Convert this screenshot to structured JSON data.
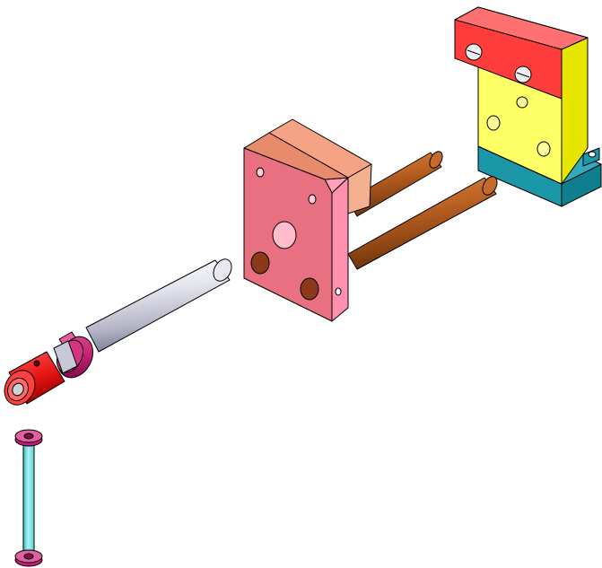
{
  "view": {
    "type": "exploded-isometric-cad-assembly",
    "background_color": "#ffffff",
    "outline_color": "#000000"
  },
  "parts": [
    {
      "id": "yellow-bracket",
      "colors": {
        "light": "#ffff66",
        "mid": "#f0f000",
        "dark": "#d8d800"
      }
    },
    {
      "id": "red-clamp-bar",
      "colors": {
        "light": "#ff5050",
        "mid": "#ee1111",
        "dark": "#cc0000"
      }
    },
    {
      "id": "teal-base",
      "colors": {
        "light": "#33aabb",
        "mid": "#1b97a8",
        "dark": "#0f7f8f"
      }
    },
    {
      "id": "pink-plate",
      "colors": {
        "light": "#ff99b0",
        "mid": "#e87080",
        "dark": "#ff8fae"
      }
    },
    {
      "id": "salmon-block",
      "colors": {
        "light": "#f5a384",
        "mid": "#e88a6c",
        "dark": "#f2b090"
      }
    },
    {
      "id": "brown-rods",
      "count": 2,
      "colors": {
        "light": "#e08840",
        "mid": "#b85f22",
        "dark": "#6d3208"
      }
    },
    {
      "id": "silver-shaft",
      "colors": {
        "light": "#ffffff",
        "mid": "#c8c8d8",
        "dark": "#70708a"
      }
    },
    {
      "id": "magenta-collar",
      "colors": {
        "light": "#e04a90",
        "mid": "#c0206e",
        "dark": "#8c1050"
      }
    },
    {
      "id": "red-knob",
      "colors": {
        "light": "#ff5555",
        "mid": "#e61515",
        "dark": "#a00000"
      }
    },
    {
      "id": "cyan-pin",
      "colors": {
        "light": "#a8f4f4",
        "mid": "#7ee6e6",
        "dark": "#3bb8c4"
      }
    },
    {
      "id": "pin-heads",
      "colors": {
        "light": "#e060a0",
        "mid": "#c81878",
        "dark": "#80104a"
      }
    }
  ]
}
